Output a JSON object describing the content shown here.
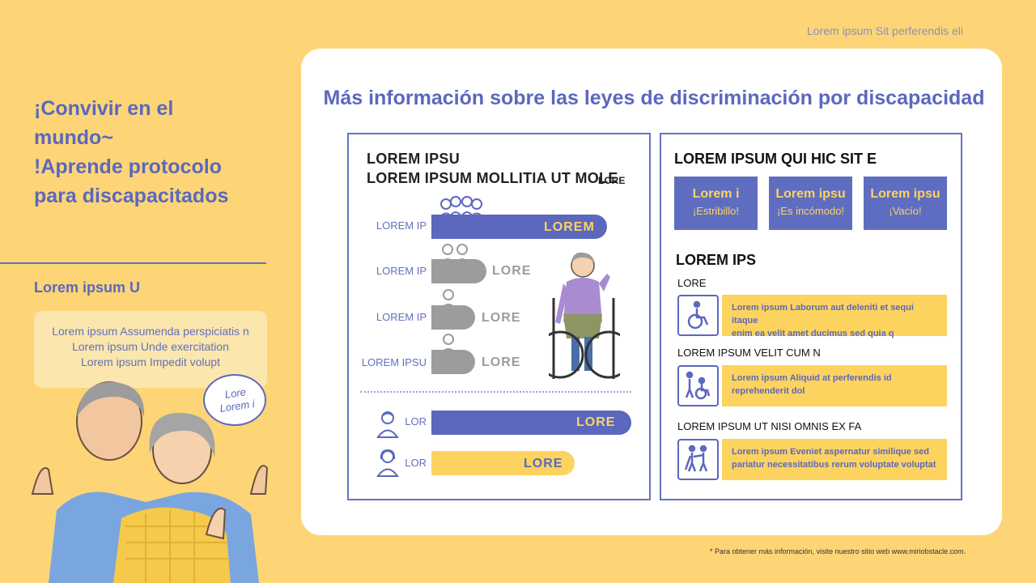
{
  "header": {
    "top_note": "Lorem ipsum Sit perferendis eli"
  },
  "left": {
    "title_lines": [
      "¡Convivir en el",
      "mundo~",
      "!Aprende protocolo",
      "para discapacitados"
    ],
    "subtitle": "Lorem ipsum U",
    "box_lines": [
      "Lorem ipsum Assumenda perspiciatis n",
      "Lorem ipsum Unde exercitation",
      "Lorem ipsum Impedit volupt"
    ],
    "speech_lines": [
      "Lore",
      "Lorem i"
    ]
  },
  "main": {
    "title": "Más información sobre las leyes de discriminación por discapacidad",
    "left_panel": {
      "heading1": "LOREM IPSU",
      "heading2": "LOREM IPSUM MOLLITIA UT MOLE",
      "heading_extra": "LORE",
      "rows": [
        {
          "label": "LOREM IP",
          "bar_text": "LOREM"
        },
        {
          "label": "LOREM IP",
          "bar_text": "LORE"
        },
        {
          "label": "LOREM IP",
          "bar_text": "LORE"
        },
        {
          "label": "LOREM IPSU",
          "bar_text": "LORE"
        }
      ],
      "gender_rows": [
        {
          "label": "LOR",
          "bar_text": "LORE"
        },
        {
          "label": "LOR",
          "bar_text": "LORE"
        }
      ]
    },
    "right_panel": {
      "heading": "LOREM IPSUM QUI HIC SIT E",
      "tiles": [
        {
          "title": "Lorem i",
          "sub": "¡Estribillo!"
        },
        {
          "title": "Lorem ipsu",
          "sub": "¡Es incómodo!"
        },
        {
          "title": "Lorem ipsu",
          "sub": "¡Vacío!"
        }
      ],
      "heading2": "LOREM IPS",
      "categories": [
        {
          "label": "LORE",
          "icon": "wheelchair-icon",
          "desc_lines": [
            "Lorem ipsum Laborum aut deleniti et sequi itaque",
            "enim ea velit amet ducimus sed quia q"
          ]
        },
        {
          "label": "LOREM IPSUM VELIT CUM N",
          "icon": "caregiver-wheelchair-icon",
          "desc_lines": [
            "Lorem ipsum Aliquid at perferendis id",
            "reprehenderit dol"
          ]
        },
        {
          "label": "LOREM IPSUM UT NISI OMNIS EX FA",
          "icon": "blind-guide-icon",
          "desc_lines": [
            "Lorem ipsum Eveniet aspernatur similique sed",
            "pariatur necessitatibus rerum voluptate voluptat"
          ]
        }
      ]
    }
  },
  "footer": {
    "note": "* Para obtener más información, visite nuestro sitio web www.miriobstacle.com."
  },
  "colors": {
    "background": "#fdd577",
    "accent_blue": "#5b68bd",
    "accent_yellow": "#fdd35f",
    "gray": "#9c9c9c"
  }
}
